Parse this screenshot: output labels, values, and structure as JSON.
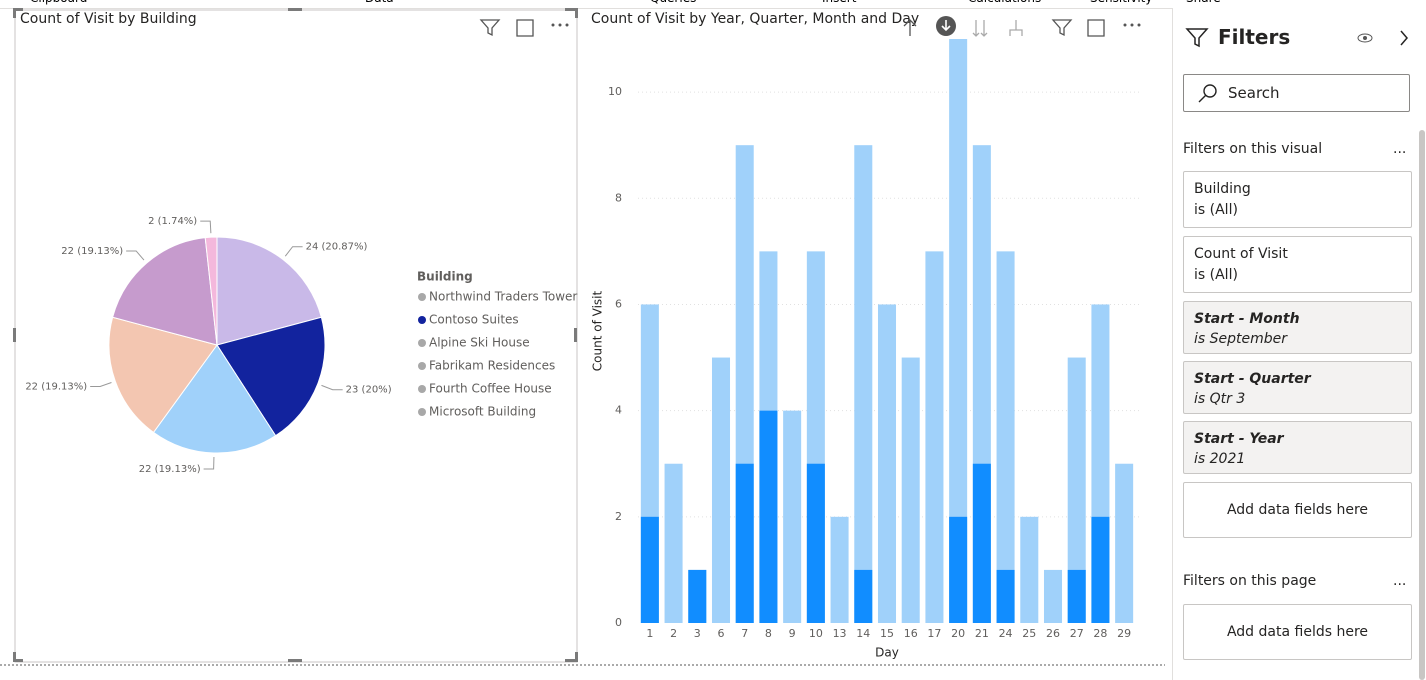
{
  "ribbon": [
    "Clipboard",
    "Data",
    "Queries",
    "Insert",
    "Calculations",
    "Sensitivity",
    "Share"
  ],
  "chart_data": [
    {
      "type": "pie",
      "title": "Count of Visit by Building",
      "legend_title": "Building",
      "categories": [
        "Northwind Traders Tower",
        "Contoso Suites",
        "Alpine Ski House",
        "Fabrikam Residences",
        "Fourth Coffee House",
        "Microsoft Building"
      ],
      "values": [
        24,
        23,
        22,
        22,
        22,
        2
      ],
      "value_labels": [
        "24 (20.87%)",
        "23 (20%)",
        "22 (19.13%)",
        "22 (19.13%)",
        "22 (19.13%)",
        "2 (1.74%)"
      ],
      "colors": [
        "#c9b9e8",
        "#12239e",
        "#a0d1fa",
        "#f3c6b1",
        "#c69bcd",
        "#f4b8dc"
      ],
      "legend_colors": [
        "#a8a8a8",
        "#12239e",
        "#a8a8a8",
        "#a8a8a8",
        "#a8a8a8",
        "#a8a8a8"
      ]
    },
    {
      "type": "bar",
      "title": "Count of Visit by Year, Quarter, Month and Day",
      "x_label": "Day",
      "y_label": "Count of Visit",
      "categories": [
        "1",
        "2",
        "3",
        "6",
        "7",
        "8",
        "9",
        "10",
        "13",
        "14",
        "15",
        "16",
        "17",
        "20",
        "21",
        "24",
        "25",
        "26",
        "27",
        "28",
        "29"
      ],
      "series": [
        {
          "color": "#a0d1fa",
          "values": [
            6,
            3,
            1,
            5,
            9,
            7,
            4,
            7,
            2,
            9,
            6,
            5,
            7,
            11,
            9,
            7,
            2,
            1,
            5,
            6,
            3
          ]
        },
        {
          "color": "#118dff",
          "values": [
            2,
            0,
            1,
            0,
            3,
            4,
            0,
            3,
            0,
            1,
            0,
            0,
            0,
            2,
            3,
            1,
            0,
            0,
            1,
            2,
            0
          ]
        }
      ],
      "ylim": [
        0,
        11
      ],
      "yticks": [
        0,
        2,
        4,
        6,
        8,
        10
      ],
      "grid": true
    }
  ],
  "filters": {
    "title": "Filters",
    "search": "Search",
    "visual_section": "Filters on this visual",
    "visual_cards": [
      {
        "field": "Building",
        "condition": "is (All)",
        "active": false
      },
      {
        "field": "Count of Visit",
        "condition": "is (All)",
        "active": false
      },
      {
        "field": "Start - Month",
        "condition": "is September",
        "active": true
      },
      {
        "field": "Start - Quarter",
        "condition": "is Qtr 3",
        "active": true
      },
      {
        "field": "Start - Year",
        "condition": "is 2021",
        "active": true
      }
    ],
    "visual_add": "Add data fields here",
    "page_section": "Filters on this page",
    "page_add": "Add data fields here"
  }
}
